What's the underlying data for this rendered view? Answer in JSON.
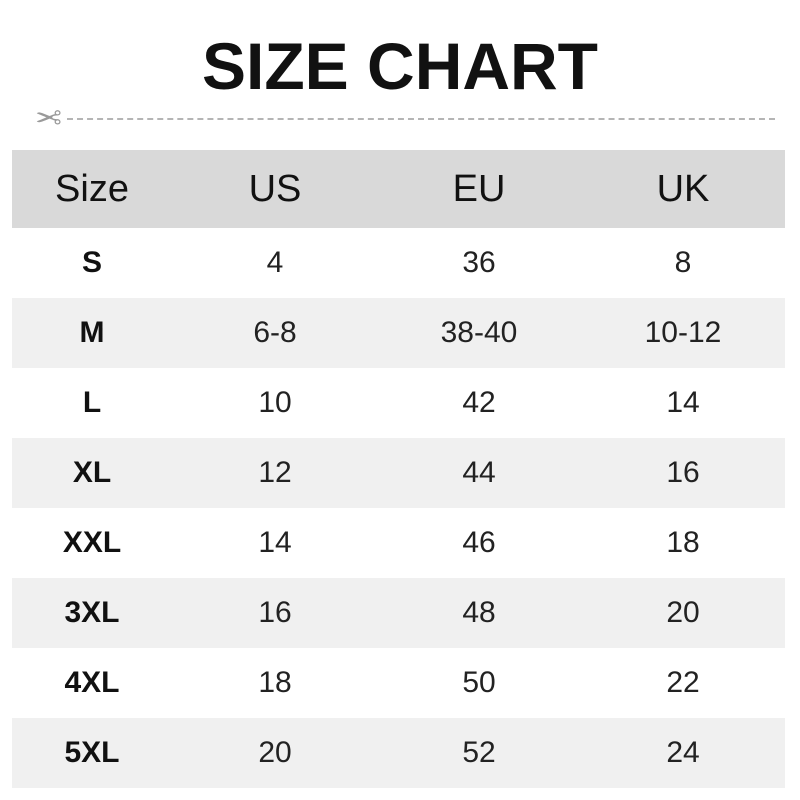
{
  "title": "SIZE CHART",
  "icons": {
    "cut": "scissors-icon"
  },
  "table": {
    "headers": [
      "Size",
      "US",
      "EU",
      "UK"
    ],
    "rows": [
      [
        "S",
        "4",
        "36",
        "8"
      ],
      [
        "M",
        "6-8",
        "38-40",
        "10-12"
      ],
      [
        "L",
        "10",
        "42",
        "14"
      ],
      [
        "XL",
        "12",
        "44",
        "16"
      ],
      [
        "XXL",
        "14",
        "46",
        "18"
      ],
      [
        "3XL",
        "16",
        "48",
        "20"
      ],
      [
        "4XL",
        "18",
        "50",
        "22"
      ],
      [
        "5XL",
        "20",
        "52",
        "24"
      ]
    ]
  },
  "colors": {
    "header_bg": "#d9d9d9",
    "alt_row_bg": "#f0f0f0"
  }
}
